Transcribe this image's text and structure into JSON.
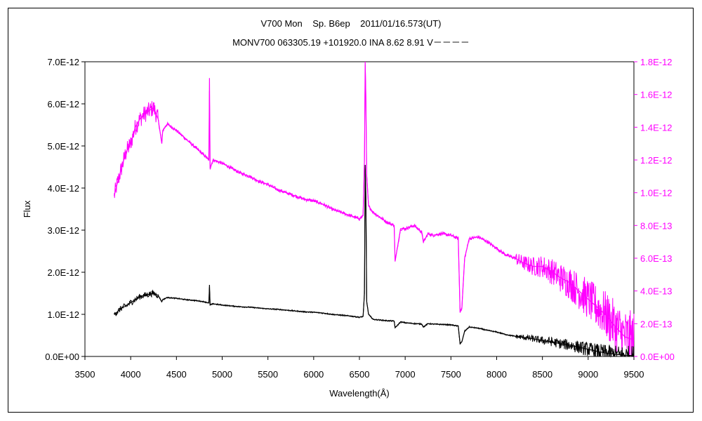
{
  "chart_data": {
    "type": "line",
    "title": "V700 Mon    Sp. B6ep    2011/01/16.573(UT)",
    "subtitle": "MONV700 063305.19 +101920.0 INA 8.62 8.91 V－－－－",
    "xlabel": "Wavelength(Å)",
    "ylabel": "Flux",
    "y2label": "",
    "xlim": [
      3500,
      9500
    ],
    "ylim": [
      0,
      7e-12
    ],
    "y2lim": [
      0,
      1.8e-12
    ],
    "x_ticks": [
      "3500",
      "4000",
      "4500",
      "5000",
      "5500",
      "6000",
      "6500",
      "7000",
      "7500",
      "8000",
      "8500",
      "9000",
      "9500"
    ],
    "y_ticks": [
      "0.0E+00",
      "1.0E-12",
      "2.0E-12",
      "3.0E-12",
      "4.0E-12",
      "5.0E-12",
      "6.0E-12",
      "7.0E-12"
    ],
    "y2_ticks": [
      "0.0E+00",
      "2.0E-13",
      "4.0E-13",
      "6.0E-13",
      "8.0E-13",
      "1.0E-12",
      "1.2E-12",
      "1.4E-12",
      "1.6E-12",
      "1.8E-12"
    ],
    "grid": false,
    "legend": "none",
    "series": [
      {
        "axis": "left",
        "color": "#000000",
        "x": [
          3820,
          3850,
          3900,
          3950,
          4000,
          4050,
          4100,
          4150,
          4200,
          4250,
          4300,
          4340,
          4350,
          4400,
          4500,
          4600,
          4700,
          4800,
          4855,
          4861,
          4868,
          4900,
          5000,
          5100,
          5200,
          5300,
          5400,
          5500,
          5600,
          5700,
          5800,
          5900,
          6000,
          6100,
          6200,
          6300,
          6400,
          6500,
          6540,
          6555,
          6563,
          6570,
          6580,
          6600,
          6650,
          6700,
          6800,
          6880,
          6890,
          6950,
          7000,
          7100,
          7180,
          7200,
          7250,
          7300,
          7400,
          7500,
          7580,
          7600,
          7620,
          7650,
          7700,
          7800,
          7900,
          8000,
          8100,
          8200,
          8300,
          8400,
          8500,
          8600,
          8700,
          8800,
          8900,
          9000,
          9100,
          9200,
          9300,
          9400,
          9500
        ],
        "y": [
          1e-12,
          1.05e-12,
          1.15e-12,
          1.2e-12,
          1.28e-12,
          1.35e-12,
          1.42e-12,
          1.45e-12,
          1.48e-12,
          1.5e-12,
          1.45e-12,
          1.3e-12,
          1.35e-12,
          1.4e-12,
          1.38e-12,
          1.35e-12,
          1.33e-12,
          1.3e-12,
          1.27e-12,
          1.7e-12,
          1.22e-12,
          1.25e-12,
          1.22e-12,
          1.2e-12,
          1.18e-12,
          1.17e-12,
          1.15e-12,
          1.13e-12,
          1.12e-12,
          1.1e-12,
          1.08e-12,
          1.06e-12,
          1.05e-12,
          1.03e-12,
          1e-12,
          9.8e-13,
          9.6e-13,
          9.3e-13,
          9.5e-13,
          1.5e-12,
          4.55e-12,
          3.9e-12,
          1.3e-12,
          1e-12,
          8.8e-13,
          8.7e-13,
          8.5e-13,
          8.4e-13,
          6.8e-13,
          8.2e-13,
          8e-13,
          7.8e-13,
          7.7e-13,
          7e-13,
          7.8e-13,
          7.7e-13,
          7.6e-13,
          7.5e-13,
          7.2e-13,
          3e-13,
          3.5e-13,
          6e-13,
          7e-13,
          6.7e-13,
          6.2e-13,
          5.8e-13,
          5.2e-13,
          4.8e-13,
          4.5e-13,
          4.2e-13,
          3.8e-13,
          3.5e-13,
          3e-13,
          2.7e-13,
          2.2e-13,
          1.7e-13,
          1.2e-13,
          8e-14,
          5e-14,
          3e-14,
          2e-14
        ]
      },
      {
        "axis": "right",
        "color": "#ff00ff",
        "x": [
          3820,
          3850,
          3900,
          3950,
          4000,
          4050,
          4100,
          4150,
          4200,
          4250,
          4300,
          4340,
          4350,
          4400,
          4500,
          4600,
          4700,
          4800,
          4855,
          4861,
          4868,
          4900,
          5000,
          5100,
          5200,
          5300,
          5400,
          5500,
          5600,
          5700,
          5800,
          5900,
          6000,
          6100,
          6200,
          6300,
          6400,
          6500,
          6540,
          6555,
          6563,
          6570,
          6580,
          6600,
          6650,
          6700,
          6800,
          6880,
          6890,
          6950,
          7000,
          7100,
          7180,
          7200,
          7250,
          7300,
          7400,
          7500,
          7580,
          7600,
          7620,
          7650,
          7700,
          7800,
          7900,
          8000,
          8100,
          8200,
          8300,
          8400,
          8500,
          8600,
          8700,
          8800,
          8900,
          9000,
          9100,
          9200,
          9300,
          9400,
          9500
        ],
        "y": [
          9.8e-13,
          1.05e-12,
          1.15e-12,
          1.25e-12,
          1.3e-12,
          1.4e-12,
          1.45e-12,
          1.48e-12,
          1.5e-12,
          1.52e-12,
          1.45e-12,
          1.3e-12,
          1.38e-12,
          1.42e-12,
          1.38e-12,
          1.33e-12,
          1.28e-12,
          1.23e-12,
          1.2e-12,
          1.7e-12,
          1.15e-12,
          1.2e-12,
          1.18e-12,
          1.15e-12,
          1.12e-12,
          1.1e-12,
          1.07e-12,
          1.05e-12,
          1.02e-12,
          1e-12,
          9.8e-13,
          9.6e-13,
          9.5e-13,
          9.3e-13,
          9e-13,
          8.8e-13,
          8.6e-13,
          8.4e-13,
          8.6e-13,
          1.2e-12,
          1.8e-12,
          1.6e-12,
          1.1e-12,
          9.2e-13,
          8.8e-13,
          8.6e-13,
          8.2e-13,
          8e-13,
          5.8e-13,
          7.8e-13,
          7.8e-13,
          8e-13,
          7.6e-13,
          7e-13,
          7.5e-13,
          7.4e-13,
          7.5e-13,
          7.4e-13,
          7.2e-13,
          2.7e-13,
          3e-13,
          6e-13,
          7.2e-13,
          7.3e-13,
          7e-13,
          6.6e-13,
          6.2e-13,
          6e-13,
          5.7e-13,
          5.5e-13,
          5.5e-13,
          5.2e-13,
          4.8e-13,
          4.5e-13,
          4e-13,
          3.5e-13,
          3e-13,
          2.5e-13,
          1.8e-13,
          1.2e-13,
          1e-13
        ]
      }
    ]
  }
}
